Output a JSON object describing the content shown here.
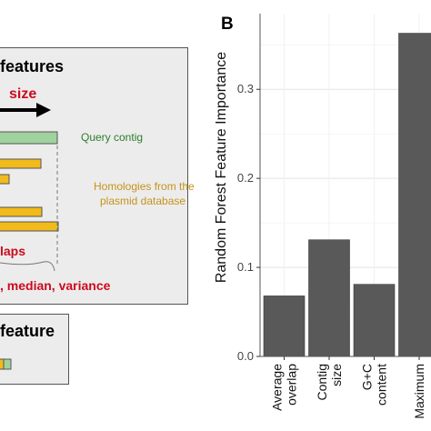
{
  "panel_a": {
    "box1": {
      "title": "features",
      "size_label": "size",
      "query_label": "Query contig",
      "homology_label_1": "Homologies from the",
      "homology_label_2": "plasmid database",
      "overlaps_label": "laps",
      "stats_label": ", median, variance"
    },
    "box2": {
      "title": "feature"
    },
    "colors": {
      "box": "#ececec",
      "query": "#9fd29f",
      "homology": "#f1bb1c",
      "red": "#cc0a1e"
    }
  },
  "panel_b": {
    "letter": "B",
    "y_tick_labels": [
      "0.0",
      "0.1",
      "0.2",
      "0.3"
    ]
  },
  "chart_data": {
    "type": "bar",
    "ylabel": "Random Forest Feature Importance",
    "xlabel": "",
    "ylim": [
      0,
      0.385
    ],
    "yticks": [
      0.0,
      0.1,
      0.2,
      0.3
    ],
    "categories": [
      {
        "lines": [
          "Average",
          "overlap"
        ]
      },
      {
        "lines": [
          "Contig",
          "size"
        ]
      },
      {
        "lines": [
          "G+C",
          "content"
        ]
      },
      {
        "lines": [
          "Maximum"
        ]
      }
    ],
    "values": [
      0.068,
      0.131,
      0.081,
      0.363
    ],
    "bar_color": "#595959",
    "grid": true
  }
}
